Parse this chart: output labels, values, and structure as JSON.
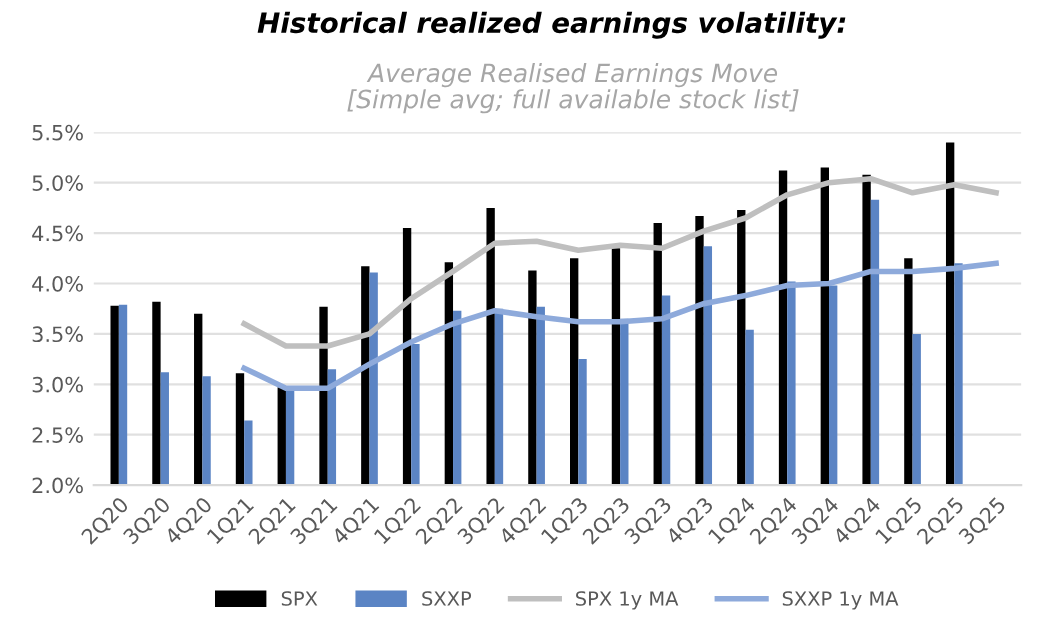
{
  "chart_data": {
    "type": "bar",
    "title": "Historical realized earnings volatility:",
    "subtitle": "Average Realised Earnings Move\n[Simple avg; full available stock list]",
    "categories": [
      "2Q20",
      "3Q20",
      "4Q20",
      "1Q21",
      "2Q21",
      "3Q21",
      "4Q21",
      "1Q22",
      "2Q22",
      "3Q22",
      "4Q22",
      "1Q23",
      "2Q23",
      "3Q23",
      "4Q23",
      "1Q24",
      "2Q24",
      "3Q24",
      "4Q24",
      "1Q25",
      "2Q25",
      "3Q25"
    ],
    "series": [
      {
        "name": "SPX",
        "color": "#000000",
        "values": [
          3.78,
          3.82,
          3.7,
          3.11,
          2.97,
          3.77,
          4.17,
          4.55,
          4.21,
          4.75,
          4.13,
          4.25,
          4.35,
          4.6,
          4.67,
          4.73,
          5.12,
          5.15,
          5.08,
          4.25,
          5.4,
          null
        ]
      },
      {
        "name": "SXXP",
        "color": "#5b84c4",
        "values": [
          3.79,
          3.12,
          3.08,
          2.64,
          2.95,
          3.15,
          4.11,
          3.4,
          3.73,
          3.75,
          3.77,
          3.25,
          3.65,
          3.88,
          4.37,
          3.54,
          4.02,
          3.98,
          4.83,
          3.5,
          4.2,
          null
        ]
      },
      {
        "name": "SPX 1y MA",
        "type": "line",
        "color": "#bfbfbf",
        "values": [
          null,
          null,
          null,
          3.6,
          3.38,
          3.38,
          3.5,
          3.85,
          4.12,
          4.4,
          4.42,
          4.33,
          4.38,
          4.35,
          4.52,
          4.65,
          4.88,
          5.0,
          5.04,
          4.9,
          4.98,
          4.9
        ]
      },
      {
        "name": "SXXP 1y MA",
        "type": "line",
        "color": "#8eaadb",
        "values": [
          null,
          null,
          null,
          3.16,
          2.96,
          2.96,
          3.2,
          3.42,
          3.6,
          3.73,
          3.67,
          3.62,
          3.62,
          3.65,
          3.8,
          3.88,
          3.98,
          4.0,
          4.12,
          4.12,
          4.15,
          4.2
        ]
      }
    ],
    "ylim": [
      2.0,
      5.5
    ],
    "yticks": [
      {
        "value": 2.0,
        "label": "2.0%"
      },
      {
        "value": 2.5,
        "label": "2.5%"
      },
      {
        "value": 3.0,
        "label": "3.0%"
      },
      {
        "value": 3.5,
        "label": "3.5%"
      },
      {
        "value": 4.0,
        "label": "4.0%"
      },
      {
        "value": 4.5,
        "label": "4.5%"
      },
      {
        "value": 5.0,
        "label": "5.0%"
      },
      {
        "value": 5.5,
        "label": "5.5%"
      }
    ],
    "grid": "y",
    "legend": "bottom"
  }
}
